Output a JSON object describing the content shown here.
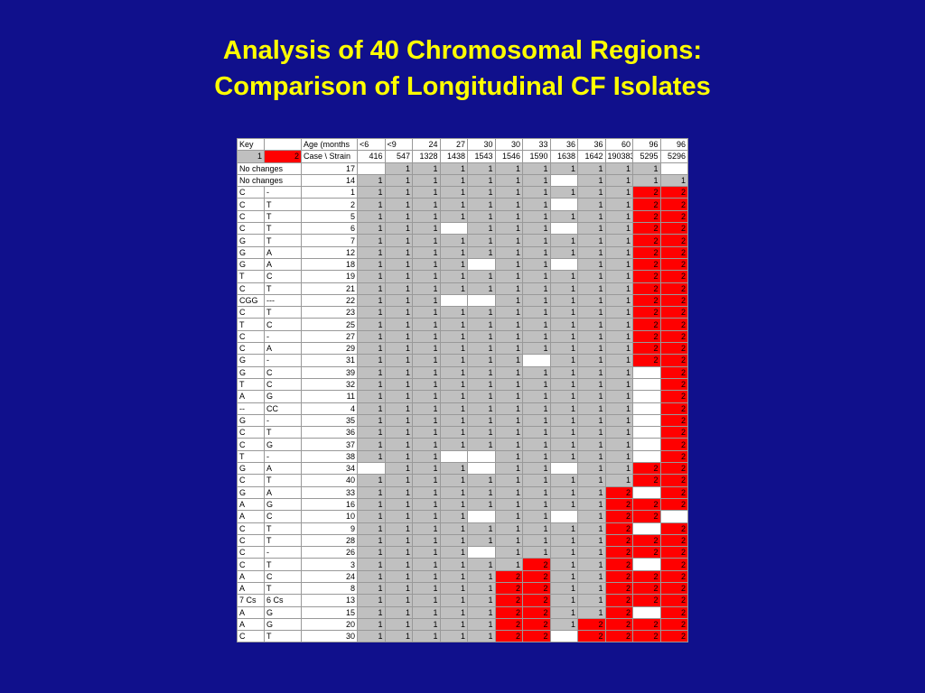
{
  "title": [
    "Analysis of 40 Chromosomal Regions:",
    "Comparison of Longitudinal CF Isolates"
  ],
  "header": {
    "key": "Key",
    "key1": 1,
    "key2": 2,
    "age_label": "Age (months",
    "case_label": "Case \\ Strain",
    "ages": [
      "<6",
      "<9",
      "24",
      "27",
      "30",
      "30",
      "33",
      "36",
      "36",
      "60",
      "96",
      "96"
    ],
    "strains": [
      416,
      547,
      1328,
      1438,
      1543,
      1546,
      1590,
      1638,
      1642,
      190383,
      5295,
      5296
    ]
  },
  "rows": [
    {
      "a": "No changes",
      "b": null,
      "id": 17,
      "cells": [
        null,
        1,
        1,
        1,
        1,
        1,
        1,
        1,
        1,
        1,
        1,
        null
      ]
    },
    {
      "a": "No changes",
      "b": null,
      "id": 14,
      "cells": [
        1,
        1,
        1,
        1,
        1,
        1,
        1,
        null,
        1,
        1,
        1,
        1
      ]
    },
    {
      "a": "C",
      "b": "-",
      "id": 1,
      "cells": [
        1,
        1,
        1,
        1,
        1,
        1,
        1,
        1,
        1,
        1,
        2,
        2
      ]
    },
    {
      "a": "C",
      "b": "T",
      "id": 2,
      "cells": [
        1,
        1,
        1,
        1,
        1,
        1,
        1,
        null,
        1,
        1,
        2,
        2
      ]
    },
    {
      "a": "C",
      "b": "T",
      "id": 5,
      "cells": [
        1,
        1,
        1,
        1,
        1,
        1,
        1,
        1,
        1,
        1,
        2,
        2
      ]
    },
    {
      "a": "C",
      "b": "T",
      "id": 6,
      "cells": [
        1,
        1,
        1,
        null,
        1,
        1,
        1,
        null,
        1,
        1,
        2,
        2
      ]
    },
    {
      "a": "G",
      "b": "T",
      "id": 7,
      "cells": [
        1,
        1,
        1,
        1,
        1,
        1,
        1,
        1,
        1,
        1,
        2,
        2
      ]
    },
    {
      "a": "G",
      "b": "A",
      "id": 12,
      "cells": [
        1,
        1,
        1,
        1,
        1,
        1,
        1,
        1,
        1,
        1,
        2,
        2
      ]
    },
    {
      "a": "G",
      "b": "A",
      "id": 18,
      "cells": [
        1,
        1,
        1,
        1,
        null,
        1,
        1,
        null,
        1,
        1,
        2,
        2
      ]
    },
    {
      "a": "T",
      "b": "C",
      "id": 19,
      "cells": [
        1,
        1,
        1,
        1,
        1,
        1,
        1,
        1,
        1,
        1,
        2,
        2
      ]
    },
    {
      "a": "C",
      "b": "T",
      "id": 21,
      "cells": [
        1,
        1,
        1,
        1,
        1,
        1,
        1,
        1,
        1,
        1,
        2,
        2
      ]
    },
    {
      "a": "CGG",
      "b": "---",
      "id": 22,
      "cells": [
        1,
        1,
        1,
        null,
        null,
        1,
        1,
        1,
        1,
        1,
        2,
        2
      ]
    },
    {
      "a": "C",
      "b": "T",
      "id": 23,
      "cells": [
        1,
        1,
        1,
        1,
        1,
        1,
        1,
        1,
        1,
        1,
        2,
        2
      ]
    },
    {
      "a": "T",
      "b": "C",
      "id": 25,
      "cells": [
        1,
        1,
        1,
        1,
        1,
        1,
        1,
        1,
        1,
        1,
        2,
        2
      ]
    },
    {
      "a": "C",
      "b": "-",
      "id": 27,
      "cells": [
        1,
        1,
        1,
        1,
        1,
        1,
        1,
        1,
        1,
        1,
        2,
        2
      ]
    },
    {
      "a": "C",
      "b": "A",
      "id": 29,
      "cells": [
        1,
        1,
        1,
        1,
        1,
        1,
        1,
        1,
        1,
        1,
        2,
        2
      ]
    },
    {
      "a": "G",
      "b": "-",
      "id": 31,
      "cells": [
        1,
        1,
        1,
        1,
        1,
        1,
        null,
        1,
        1,
        1,
        2,
        2
      ]
    },
    {
      "a": "G",
      "b": "C",
      "id": 39,
      "cells": [
        1,
        1,
        1,
        1,
        1,
        1,
        1,
        1,
        1,
        1,
        null,
        2
      ]
    },
    {
      "a": "T",
      "b": "C",
      "id": 32,
      "cells": [
        1,
        1,
        1,
        1,
        1,
        1,
        1,
        1,
        1,
        1,
        null,
        2
      ]
    },
    {
      "a": "A",
      "b": "G",
      "id": 11,
      "cells": [
        1,
        1,
        1,
        1,
        1,
        1,
        1,
        1,
        1,
        1,
        null,
        2
      ]
    },
    {
      "a": "--",
      "b": "CC",
      "id": 4,
      "cells": [
        1,
        1,
        1,
        1,
        1,
        1,
        1,
        1,
        1,
        1,
        null,
        2
      ]
    },
    {
      "a": "G",
      "b": "-",
      "id": 35,
      "cells": [
        1,
        1,
        1,
        1,
        1,
        1,
        1,
        1,
        1,
        1,
        null,
        2
      ]
    },
    {
      "a": "C",
      "b": "T",
      "id": 36,
      "cells": [
        1,
        1,
        1,
        1,
        1,
        1,
        1,
        1,
        1,
        1,
        null,
        2
      ]
    },
    {
      "a": "C",
      "b": "G",
      "id": 37,
      "cells": [
        1,
        1,
        1,
        1,
        1,
        1,
        1,
        1,
        1,
        1,
        null,
        2
      ]
    },
    {
      "a": "T",
      "b": "-",
      "id": 38,
      "cells": [
        1,
        1,
        1,
        null,
        null,
        1,
        1,
        1,
        1,
        1,
        null,
        2
      ]
    },
    {
      "a": "G",
      "b": "A",
      "id": 34,
      "cells": [
        null,
        1,
        1,
        1,
        null,
        1,
        1,
        null,
        1,
        1,
        2,
        2
      ]
    },
    {
      "a": "C",
      "b": "T",
      "id": 40,
      "cells": [
        1,
        1,
        1,
        1,
        1,
        1,
        1,
        1,
        1,
        1,
        2,
        2
      ]
    },
    {
      "a": "G",
      "b": "A",
      "id": 33,
      "cells": [
        1,
        1,
        1,
        1,
        1,
        1,
        1,
        1,
        1,
        2,
        null,
        2
      ]
    },
    {
      "a": "A",
      "b": "G",
      "id": 16,
      "cells": [
        1,
        1,
        1,
        1,
        1,
        1,
        1,
        1,
        1,
        2,
        2,
        2
      ]
    },
    {
      "a": "A",
      "b": "C",
      "id": 10,
      "cells": [
        1,
        1,
        1,
        1,
        null,
        1,
        1,
        null,
        1,
        2,
        2,
        null
      ]
    },
    {
      "a": "C",
      "b": "T",
      "id": 9,
      "cells": [
        1,
        1,
        1,
        1,
        1,
        1,
        1,
        1,
        1,
        2,
        null,
        2
      ]
    },
    {
      "a": "C",
      "b": "T",
      "id": 28,
      "cells": [
        1,
        1,
        1,
        1,
        1,
        1,
        1,
        1,
        1,
        2,
        2,
        2
      ]
    },
    {
      "a": "C",
      "b": "-",
      "id": 26,
      "cells": [
        1,
        1,
        1,
        1,
        null,
        1,
        1,
        1,
        1,
        2,
        2,
        2
      ]
    },
    {
      "a": "C",
      "b": "T",
      "id": 3,
      "cells": [
        1,
        1,
        1,
        1,
        1,
        1,
        2,
        1,
        1,
        2,
        null,
        2
      ]
    },
    {
      "a": "A",
      "b": "C",
      "id": 24,
      "cells": [
        1,
        1,
        1,
        1,
        1,
        2,
        2,
        1,
        1,
        2,
        2,
        2
      ]
    },
    {
      "a": "A",
      "b": "T",
      "id": 8,
      "cells": [
        1,
        1,
        1,
        1,
        1,
        2,
        2,
        1,
        1,
        2,
        2,
        2
      ]
    },
    {
      "a": "7 Cs",
      "b": "6 Cs",
      "id": 13,
      "cells": [
        1,
        1,
        1,
        1,
        1,
        2,
        2,
        1,
        1,
        2,
        2,
        2
      ]
    },
    {
      "a": "A",
      "b": "G",
      "id": 15,
      "cells": [
        1,
        1,
        1,
        1,
        1,
        2,
        2,
        1,
        1,
        2,
        null,
        2
      ]
    },
    {
      "a": "A",
      "b": "G",
      "id": 20,
      "cells": [
        1,
        1,
        1,
        1,
        1,
        2,
        2,
        1,
        2,
        2,
        2,
        2
      ]
    },
    {
      "a": "C",
      "b": "T",
      "id": 30,
      "cells": [
        1,
        1,
        1,
        1,
        1,
        2,
        2,
        null,
        2,
        2,
        2,
        2
      ]
    }
  ]
}
